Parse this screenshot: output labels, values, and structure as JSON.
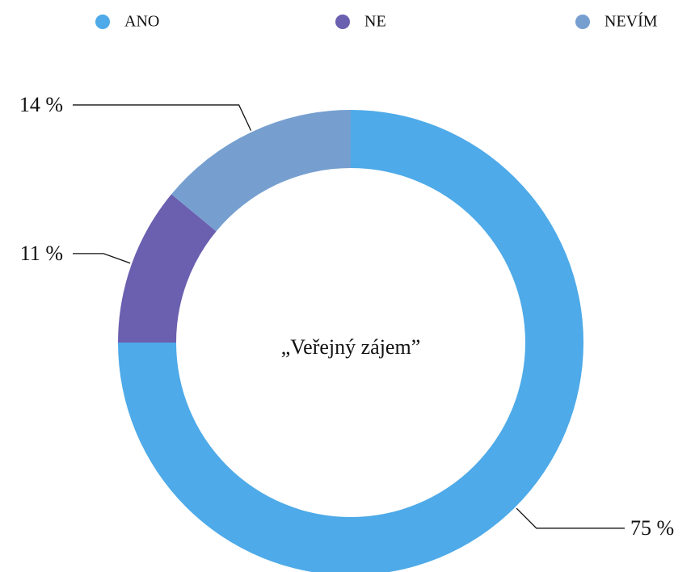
{
  "chart_data": {
    "type": "donut",
    "title": "„Veřejný zájem”",
    "categories": [
      "ANO",
      "NE",
      "NEVÍM"
    ],
    "values": [
      75,
      11,
      14
    ],
    "value_labels": [
      "75 %",
      "11 %",
      "14 %"
    ],
    "colors": [
      "#4eaae8",
      "#6b5fb0",
      "#769fd0"
    ],
    "legend": "top"
  }
}
